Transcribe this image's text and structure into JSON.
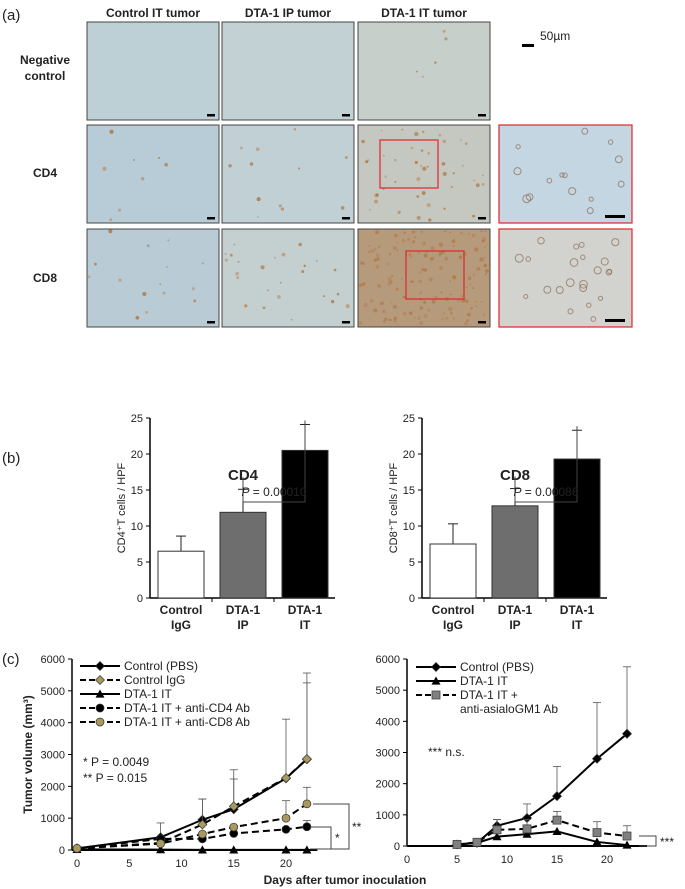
{
  "panel_a": {
    "label": "(a)",
    "columns": [
      "Control IT tumor",
      "DTA-1 IP tumor",
      "DTA-1 IT tumor"
    ],
    "rows": [
      "Negative control",
      "CD4",
      "CD8"
    ],
    "scale_bar": "50µm",
    "colors": {
      "stain_background": "#b9cfd8",
      "dab_brown": "#b07a48",
      "inset_border": "#e0262c"
    }
  },
  "panel_b_label": "(b)",
  "panel_c_label": "(c)",
  "chart_data": [
    {
      "type": "bar",
      "title": "CD4",
      "ylabel": "CD4⁺T cells / HPF",
      "ylim": [
        0,
        25
      ],
      "yticks": [
        0,
        5,
        10,
        15,
        20,
        25
      ],
      "categories": [
        [
          "Control",
          "IgG"
        ],
        [
          "DTA-1",
          "IP"
        ],
        [
          "DTA-1",
          "IT"
        ]
      ],
      "values": [
        6.5,
        11.9,
        20.5
      ],
      "errors": [
        2.1,
        3.2,
        3.6
      ],
      "bar_colors": [
        "#ffffff",
        "#6e6e6e",
        "#000000"
      ],
      "annotation": {
        "prefix": "P",
        "text": " = 0.00010",
        "between": [
          1,
          2
        ]
      }
    },
    {
      "type": "bar",
      "title": "CD8",
      "ylabel": "CD8⁺T cells / HPF",
      "ylim": [
        0,
        25
      ],
      "yticks": [
        0,
        5,
        10,
        15,
        20,
        25
      ],
      "categories": [
        [
          "Control",
          "IgG"
        ],
        [
          "DTA-1",
          "IP"
        ],
        [
          "DTA-1",
          "IT"
        ]
      ],
      "values": [
        7.5,
        12.8,
        19.3
      ],
      "errors": [
        2.8,
        2.4,
        4.0
      ],
      "bar_colors": [
        "#ffffff",
        "#6e6e6e",
        "#000000"
      ],
      "annotation": {
        "prefix": "P",
        "text": " = 0.00086",
        "between": [
          1,
          2
        ]
      }
    },
    {
      "type": "line",
      "ylabel": "Tumor volume (mm³)",
      "xlabel": "Days after tumor inoculation",
      "xlim": [
        0,
        23
      ],
      "ylim": [
        0,
        6000
      ],
      "xticks": [
        0,
        5,
        10,
        15,
        20
      ],
      "yticks": [
        0,
        1000,
        2000,
        3000,
        4000,
        5000,
        6000
      ],
      "legend_position": "top-left",
      "notes": [
        "*  P = 0.0049",
        "** P = 0.015"
      ],
      "brackets": [
        "*",
        "**"
      ],
      "series": [
        {
          "name": "Control (PBS)",
          "marker": "diamond",
          "color": "#000000",
          "dash": false,
          "x": [
            0,
            8,
            12,
            15,
            20,
            22
          ],
          "y": [
            50,
            400,
            950,
            1280,
            2250,
            2850
          ],
          "err": [
            0,
            450,
            650,
            950,
            0,
            2400
          ]
        },
        {
          "name": "Control IgG",
          "marker": "diamond",
          "color": "#a89a5e",
          "dash": true,
          "x": [
            0,
            8,
            12,
            15,
            20,
            22
          ],
          "y": [
            50,
            220,
            800,
            1370,
            2260,
            2860
          ],
          "err": [
            0,
            0,
            800,
            1150,
            1850,
            2700
          ]
        },
        {
          "name": "DTA-1 IT",
          "marker": "triangle",
          "color": "#000000",
          "dash": false,
          "x": [
            0,
            8,
            12,
            15,
            20,
            22
          ],
          "y": [
            20,
            10,
            5,
            5,
            5,
            5
          ],
          "err": [
            0,
            0,
            0,
            0,
            0,
            0
          ]
        },
        {
          "name": "DTA-1 IT + anti-CD4 Ab",
          "marker": "circle",
          "color": "#000000",
          "dash": true,
          "x": [
            0,
            8,
            12,
            15,
            20,
            22
          ],
          "y": [
            50,
            350,
            350,
            520,
            650,
            730
          ],
          "err": [
            0,
            0,
            0,
            0,
            0,
            200
          ]
        },
        {
          "name": "DTA-1 IT + anti-CD8 Ab",
          "marker": "circle",
          "color": "#a89a5e",
          "dash": true,
          "x": [
            0,
            8,
            12,
            15,
            20,
            22
          ],
          "y": [
            50,
            200,
            500,
            720,
            1000,
            1450
          ],
          "err": [
            0,
            0,
            0,
            0,
            550,
            520
          ]
        }
      ]
    },
    {
      "type": "line",
      "xlim": [
        0,
        24
      ],
      "ylim": [
        0,
        6000
      ],
      "xticks": [
        0,
        5,
        10,
        15,
        20
      ],
      "yticks": [
        0,
        1000,
        2000,
        3000,
        4000,
        5000,
        6000
      ],
      "legend_position": "top-left",
      "notes": [
        "*** n.s."
      ],
      "brackets": [
        "***"
      ],
      "series": [
        {
          "name": "Control (PBS)",
          "marker": "diamond",
          "color": "#000000",
          "dash": false,
          "x": [
            5,
            7,
            9,
            12,
            15,
            19,
            22
          ],
          "y": [
            50,
            100,
            650,
            900,
            1600,
            2800,
            3600
          ],
          "err": [
            0,
            0,
            200,
            450,
            950,
            1800,
            2150
          ]
        },
        {
          "name": "DTA-1 IT",
          "marker": "triangle",
          "color": "#000000",
          "dash": false,
          "x": [
            5,
            7,
            9,
            12,
            15,
            19,
            22
          ],
          "y": [
            50,
            100,
            300,
            380,
            470,
            130,
            30
          ],
          "err": [
            0,
            0,
            0,
            0,
            0,
            0,
            0
          ]
        },
        {
          "name": "DTA-1 IT + anti-asialoGM1 Ab",
          "legend_lines": [
            "DTA-1 IT +",
            "anti-asialoGM1 Ab"
          ],
          "marker": "square",
          "color": "#808080",
          "dash": true,
          "x": [
            5,
            7,
            9,
            12,
            15,
            19,
            22
          ],
          "y": [
            50,
            120,
            520,
            550,
            830,
            430,
            320
          ],
          "err": [
            0,
            0,
            330,
            300,
            280,
            350,
            330
          ]
        }
      ]
    }
  ]
}
